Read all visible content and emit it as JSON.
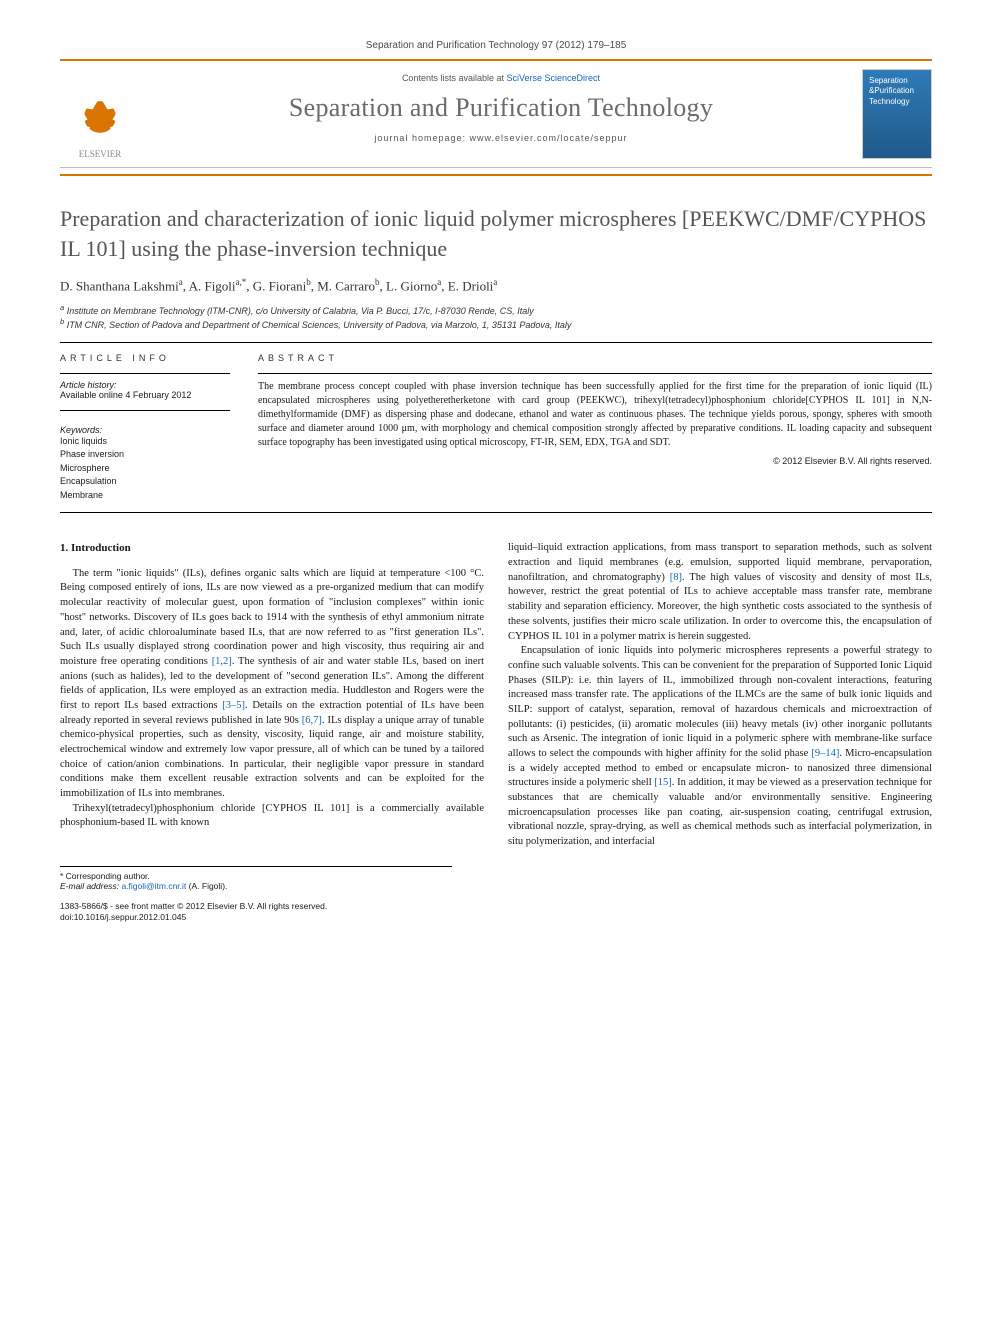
{
  "header": {
    "citation": "Separation and Purification Technology 97 (2012) 179–185",
    "contents_prefix": "Contents lists available at",
    "contents_link": "SciVerse ScienceDirect",
    "journal": "Separation and Purification Technology",
    "homepage_prefix": "journal homepage:",
    "homepage_url": "www.elsevier.com/locate/seppur",
    "publisher": "ELSEVIER",
    "cover_text": "Separation &Purification Technology"
  },
  "article": {
    "title": "Preparation and characterization of ionic liquid polymer microspheres [PEEKWC/DMF/CYPHOS IL 101] using the phase-inversion technique",
    "authors_html": "D. Shanthana Lakshmi<sup>a</sup>, A. Figoli<sup>a,*</sup>, G. Fiorani<sup>b</sup>, M. Carraro<sup>b</sup>, L. Giorno<sup>a</sup>, E. Drioli<sup>a</sup>",
    "affiliations": {
      "a": "Institute on Membrane Technology (ITM-CNR), c/o University of Calabria, Via P. Bucci, 17/c, I-87030 Rende, CS, Italy",
      "b": "ITM CNR, Section of Padova and Department of Chemical Sciences, University of Padova, via Marzolo, 1, 35131 Padova, Italy"
    }
  },
  "info": {
    "label": "article info",
    "history_label": "Article history:",
    "history": "Available online 4 February 2012",
    "keywords_label": "Keywords:",
    "keywords": [
      "Ionic liquids",
      "Phase inversion",
      "Microsphere",
      "Encapsulation",
      "Membrane"
    ]
  },
  "abstract": {
    "label": "abstract",
    "text": "The membrane process concept coupled with phase inversion technique has been successfully applied for the first time for the preparation of ionic liquid (IL) encapsulated microspheres using polyetheretherketone with card group (PEEKWC), trihexyl(tetradecyl)phosphonium chloride[CYPHOS IL 101] in N,N-dimethylformamide (DMF) as dispersing phase and dodecane, ethanol and water as continuous phases. The technique yields porous, spongy, spheres with smooth surface and diameter around 1000 μm, with morphology and chemical composition strongly affected by preparative conditions. IL loading capacity and subsequent surface topography has been investigated using optical microscopy, FT-IR, SEM, EDX, TGA and SDT.",
    "copyright": "© 2012 Elsevier B.V. All rights reserved."
  },
  "body": {
    "section_title": "1. Introduction",
    "p1": "The term \"ionic liquids\" (ILs), defines organic salts which are liquid at temperature <100 °C. Being composed entirely of ions, ILs are now viewed as a pre-organized medium that can modify molecular reactivity of molecular guest, upon formation of \"inclusion complexes\" within ionic \"host\" networks. Discovery of ILs goes back to 1914 with the synthesis of ethyl ammonium nitrate and, later, of acidic chloroaluminate based ILs, that are now referred to as \"first generation ILs\". Such ILs usually displayed strong coordination power and high viscosity, thus requiring air and moisture free operating conditions [1,2]. The synthesis of air and water stable ILs, based on inert anions (such as halides), led to the development of \"second generation ILs\". Among the different fields of application, ILs were employed as an extraction media. Huddleston and Rogers were the first to report ILs based extractions [3–5]. Details on the extraction potential of ILs have been already reported in several reviews published in late 90s [6,7]. ILs display a unique array of tunable chemico-physical properties, such as density, viscosity, liquid range, air and moisture stability, electrochemical window and extremely low vapor pressure, all of which can be tuned by a tailored choice of cation/anion combinations. In particular, their negligible vapor pressure in standard conditions make them excellent reusable extraction solvents and can be exploited for the immobilization of ILs into membranes.",
    "p2": "Trihexyl(tetradecyl)phosphonium chloride [CYPHOS IL 101] is a commercially available phosphonium-based IL with known",
    "p3": "liquid–liquid extraction applications, from mass transport to separation methods, such as solvent extraction and liquid membranes (e.g. emulsion, supported liquid membrane, pervaporation, nanofiltration, and chromatography) [8]. The high values of viscosity and density of most ILs, however, restrict the great potential of ILs to achieve acceptable mass transfer rate, membrane stability and separation efficiency. Moreover, the high synthetic costs associated to the synthesis of these solvents, justifies their micro scale utilization. In order to overcome this, the encapsulation of CYPHOS IL 101 in a polymer matrix is herein suggested.",
    "p4": "Encapsulation of ionic liquids into polymeric microspheres represents a powerful strategy to confine such valuable solvents. This can be convenient for the preparation of Supported Ionic Liquid Phases (SILP): i.e. thin layers of IL, immobilized through non-covalent interactions, featuring increased mass transfer rate. The applications of the ILMCs are the same of bulk ionic liquids and SILP: support of catalyst, separation, removal of hazardous chemicals and microextraction of pollutants: (i) pesticides, (ii) aromatic molecules (iii) heavy metals (iv) other inorganic pollutants such as Arsenic. The integration of ionic liquid in a polymeric sphere with membrane-like surface allows to select the compounds with higher affinity for the solid phase [9–14]. Micro-encapsulation is a widely accepted method to embed or encapsulate micron- to nanosized three dimensional structures inside a polymeric shell [15]. In addition, it may be viewed as a preservation technique for substances that are chemically valuable and/or environmentally sensitive. Engineering microencapsulation processes like pan coating, air-suspension coating, centrifugal extrusion, vibrational nozzle, spray-drying, as well as chemical methods such as interfacial polymerization, in situ polymerization, and interfacial"
  },
  "footnote": {
    "corresponding": "* Corresponding author.",
    "email_label": "E-mail address:",
    "email": "a.figoli@itm.cnr.it",
    "email_who": "(A. Figoli)."
  },
  "bottom": {
    "issn": "1383-5866/$ - see front matter © 2012 Elsevier B.V. All rights reserved.",
    "doi": "doi:10.1016/j.seppur.2012.01.045"
  },
  "refs": {
    "r12": "[1,2]",
    "r35": "[3–5]",
    "r67": "[6,7]",
    "r8": "[8]",
    "r914": "[9–14]",
    "r15": "[15]"
  }
}
